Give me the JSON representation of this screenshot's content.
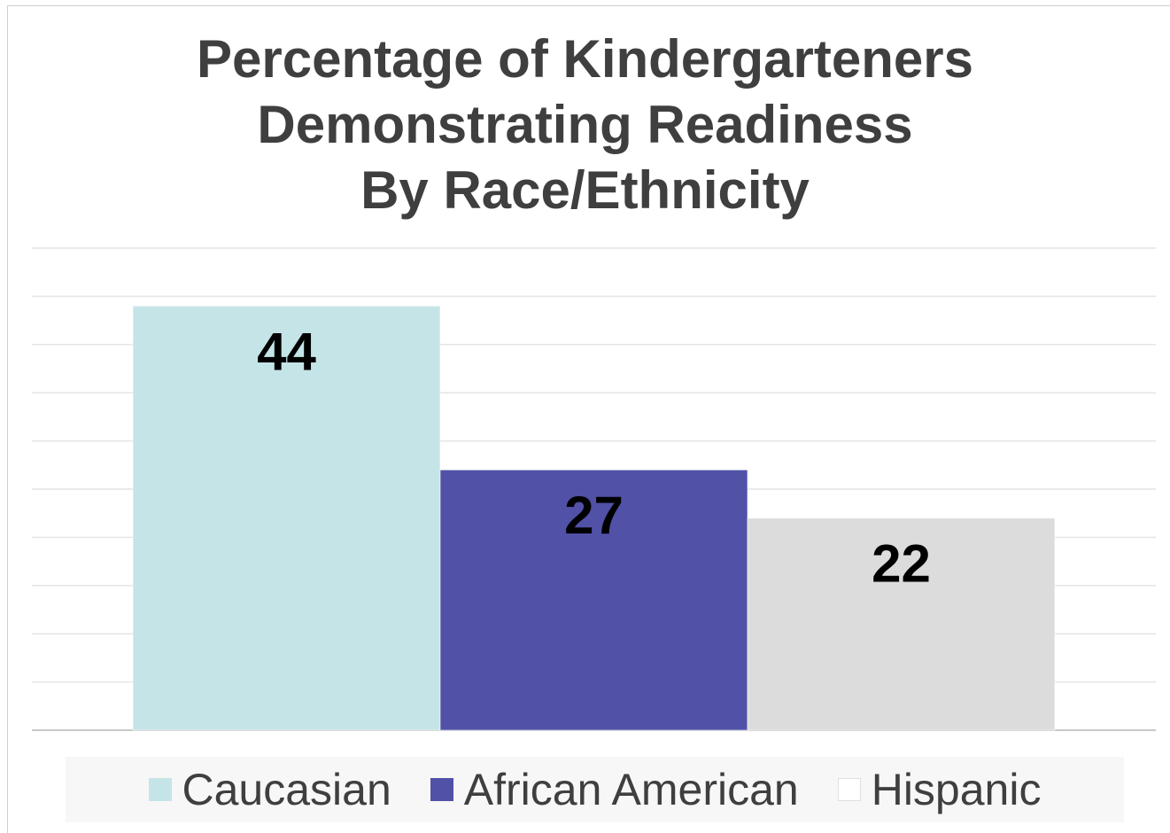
{
  "chart_data": {
    "type": "bar",
    "title_lines": [
      "Percentage of Kindergarteners",
      "Demonstrating Readiness",
      "By Race/Ethnicity"
    ],
    "series": [
      {
        "name": "Caucasian",
        "value": 44,
        "label": "44",
        "color": "#c5e4e7"
      },
      {
        "name": "African American",
        "value": 27,
        "label": "27",
        "color": "#5051a7"
      },
      {
        "name": "Hispanic",
        "value": 22,
        "label": "22",
        "color": "#dcdcdc"
      }
    ],
    "ylim": [
      0,
      50
    ],
    "gridlines": 10,
    "grid": true,
    "legend_position": "bottom"
  }
}
